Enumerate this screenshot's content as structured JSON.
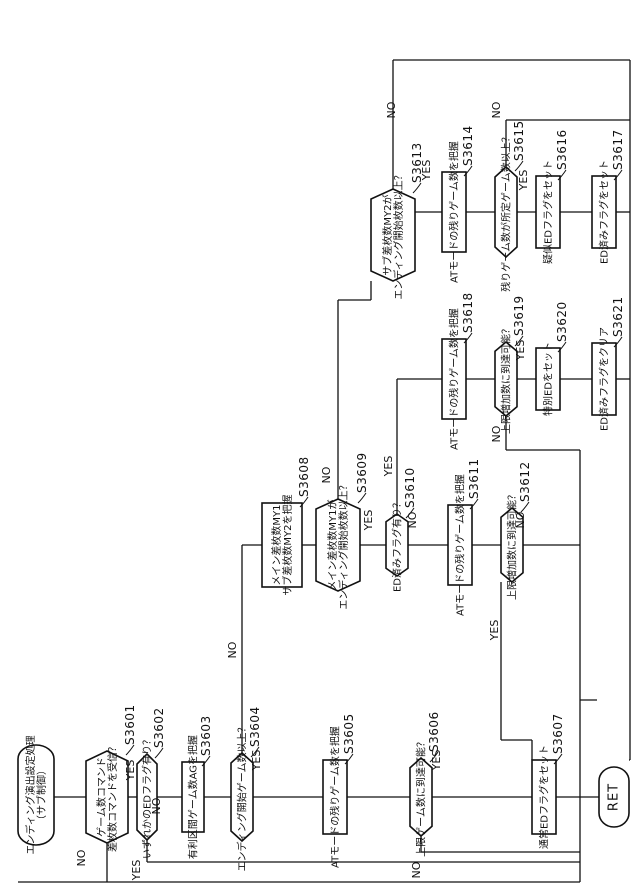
{
  "flowchart": {
    "nodes": [
      {
        "id": "start",
        "shape": "terminal",
        "step": "",
        "lines": [
          "エンディング演出設定処理",
          "（サブ制御）"
        ]
      },
      {
        "id": "n3601",
        "shape": "decision",
        "step": "S3601",
        "lines": [
          "ゲーム数コマンド",
          "差枚数コマンドを受信？"
        ]
      },
      {
        "id": "n3602",
        "shape": "decision",
        "step": "S3602",
        "lines": [
          "いずれかのEDフラグ有り？"
        ]
      },
      {
        "id": "n3603",
        "shape": "process",
        "step": "S3603",
        "lines": [
          "有利区間ゲーム数AGを把握"
        ]
      },
      {
        "id": "n3604",
        "shape": "decision",
        "step": "S3604",
        "lines": [
          "エンディング開始ゲーム数以上？"
        ]
      },
      {
        "id": "n3605",
        "shape": "process",
        "step": "S3605",
        "lines": [
          "ATモードの残りゲーム数を把握"
        ]
      },
      {
        "id": "n3606",
        "shape": "decision",
        "step": "S3606",
        "lines": [
          "上限ゲーム数に到達可能？"
        ]
      },
      {
        "id": "n3607",
        "shape": "process",
        "step": "S3607",
        "lines": [
          "通常EDフラグをセット"
        ]
      },
      {
        "id": "n3608",
        "shape": "process",
        "step": "S3608",
        "lines": [
          "メイン差枚数MY1",
          "サブ差枚数MY2を把握"
        ]
      },
      {
        "id": "n3609",
        "shape": "decision",
        "step": "S3609",
        "lines": [
          "メイン差枚数MY1が",
          "エンディング開始枚数以上？"
        ]
      },
      {
        "id": "n3610",
        "shape": "decision",
        "step": "S3610",
        "lines": [
          "ED済みフラグ有り？"
        ]
      },
      {
        "id": "n3611",
        "shape": "process",
        "step": "S3611",
        "lines": [
          "ATモードの残りゲーム数を把握"
        ]
      },
      {
        "id": "n3612",
        "shape": "decision",
        "step": "S3612",
        "lines": [
          "上限増加数に到達可能？"
        ]
      },
      {
        "id": "n3613",
        "shape": "decision",
        "step": "S3613",
        "lines": [
          "サブ差枚数MY2が",
          "エンディング開始枚数以上？"
        ]
      },
      {
        "id": "n3614",
        "shape": "process",
        "step": "S3614",
        "lines": [
          "ATモードの残りゲーム数を把握"
        ]
      },
      {
        "id": "n3615",
        "shape": "decision",
        "step": "S3615",
        "lines": [
          "残りゲーム数が所定ゲーム数以上？"
        ]
      },
      {
        "id": "n3616",
        "shape": "process",
        "step": "S3616",
        "lines": [
          "疑似EDフラグをセット"
        ]
      },
      {
        "id": "n3617",
        "shape": "process",
        "step": "S3617",
        "lines": [
          "ED済みフラグをセット"
        ]
      },
      {
        "id": "n3618",
        "shape": "process",
        "step": "S3618",
        "lines": [
          "ATモードの残りゲーム数を把握"
        ]
      },
      {
        "id": "n3619",
        "shape": "decision",
        "step": "S3619",
        "lines": [
          "上限増加数に到達可能？"
        ]
      },
      {
        "id": "n3620",
        "shape": "process",
        "step": "S3620",
        "lines": [
          "特別EDをセット"
        ]
      },
      {
        "id": "n3621",
        "shape": "process",
        "step": "S3621",
        "lines": [
          "ED済みフラグをクリア"
        ]
      },
      {
        "id": "ret",
        "shape": "terminal",
        "step": "",
        "lines": [
          "RET"
        ]
      }
    ],
    "branch_labels": [
      "YES",
      "NO"
    ]
  }
}
